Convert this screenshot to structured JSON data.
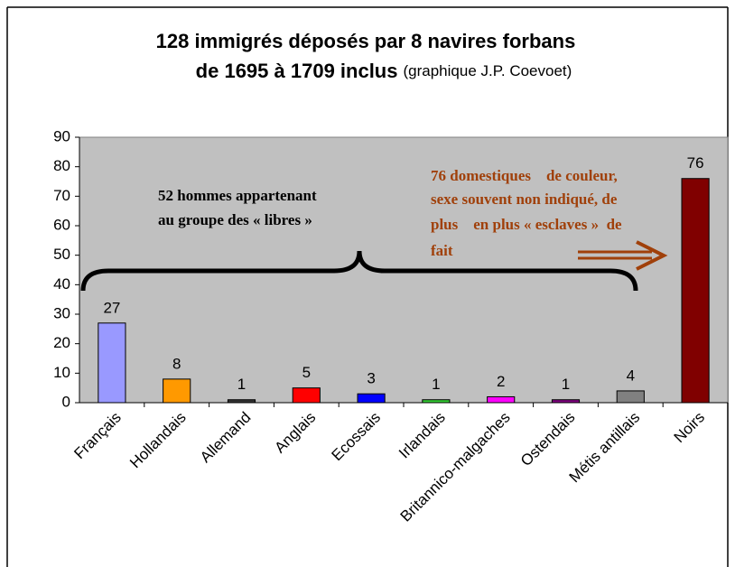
{
  "chart_data": {
    "type": "bar",
    "title": "128 immigrés déposés par 8 navires forbans",
    "subtitle": "de 1695 à 1709 inclus",
    "credit": "(graphique J.P. Coevoet)",
    "categories": [
      "Français",
      "Hollandais",
      "Allemand",
      "Anglais",
      "Ecossais",
      "Irlandais",
      "Britannico-malgaches",
      "Ostendais",
      "Métis antillais",
      "Noirs"
    ],
    "values": [
      27,
      8,
      1,
      5,
      3,
      1,
      2,
      1,
      4,
      76
    ],
    "colors": [
      "#9999ff",
      "#ff9900",
      "#333333",
      "#ff0000",
      "#0000ff",
      "#33cc33",
      "#ff00ff",
      "#800080",
      "#808080",
      "#800000"
    ],
    "ylim": [
      0,
      90
    ],
    "yticks": [
      0,
      10,
      20,
      30,
      40,
      50,
      60,
      70,
      80,
      90
    ],
    "annotations": [
      "52 hommes appartenant",
      "au groupe des « libres »"
    ],
    "annotations_right": [
      "76 domestiques    de couleur,",
      "sexe souvent non indiqué, de",
      "plus    en plus « esclaves »  de",
      "fait"
    ]
  }
}
